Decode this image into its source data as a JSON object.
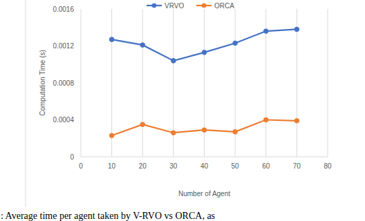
{
  "chart_data": {
    "type": "line",
    "x_label": "Number of Agent",
    "y_label": "Computation Time (s)",
    "caption": ": Average time per agent taken by V-RVO vs ORCA, as",
    "x": [
      10,
      20,
      30,
      40,
      50,
      60,
      70
    ],
    "series": [
      {
        "name": "VRVO",
        "color": "#4472c4",
        "marker": "circle",
        "values": [
          0.00127,
          0.00121,
          0.00104,
          0.00113,
          0.00123,
          0.00136,
          0.00138
        ]
      },
      {
        "name": "ORCA",
        "color": "#ed7d31",
        "marker": "circle",
        "values": [
          0.00023,
          0.00035,
          0.00026,
          0.00029,
          0.00027,
          0.0004,
          0.00039
        ]
      }
    ],
    "xlim": [
      0,
      80
    ],
    "xticks": [
      0,
      10,
      20,
      30,
      40,
      50,
      60,
      70,
      80
    ],
    "ylim": [
      0,
      0.0016
    ],
    "yticks": [
      0,
      0.0004,
      0.0008,
      0.0012,
      0.0016
    ],
    "grid": true,
    "legend": "top"
  }
}
